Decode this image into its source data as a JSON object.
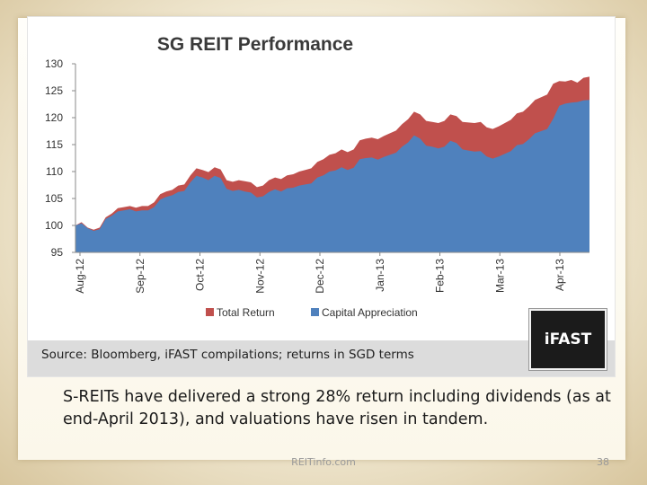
{
  "chart_data": {
    "type": "area",
    "title": "SG REIT Performance",
    "xlabel": "",
    "ylabel": "",
    "ylim": [
      95,
      130
    ],
    "yticks": [
      95,
      100,
      105,
      110,
      115,
      120,
      125,
      130
    ],
    "x_tick_labels": [
      "Aug-12",
      "Sep-12",
      "Oct-12",
      "Nov-12",
      "Dec-12",
      "Jan-13",
      "Feb-13",
      "Mar-13",
      "Apr-13"
    ],
    "legend_position": "bottom",
    "grid": false,
    "series": [
      {
        "name": "Total Return",
        "color": "#c0504d",
        "values": [
          100,
          100.6,
          99.6,
          99.2,
          99.6,
          101.5,
          102.2,
          103.2,
          103.4,
          103.6,
          103.3,
          103.6,
          103.6,
          104.3,
          105.8,
          106.3,
          106.6,
          107.4,
          107.6,
          109.3,
          110.6,
          110.3,
          109.9,
          110.8,
          110.4,
          108.4,
          108.1,
          108.4,
          108.2,
          108.0,
          107.1,
          107.4,
          108.4,
          108.9,
          108.6,
          109.3,
          109.5,
          110.0,
          110.3,
          110.6,
          111.8,
          112.3,
          113.1,
          113.4,
          114.1,
          113.6,
          114.1,
          115.8,
          116.1,
          116.3,
          116.0,
          116.6,
          117.1,
          117.6,
          118.8,
          119.7,
          121.1,
          120.6,
          119.4,
          119.2,
          119.0,
          119.4,
          120.6,
          120.3,
          119.2,
          119.1,
          119.0,
          119.2,
          118.2,
          117.9,
          118.4,
          119.0,
          119.6,
          120.8,
          121.1,
          122.1,
          123.3,
          123.8,
          124.3,
          126.3,
          126.8,
          126.7,
          127.0,
          126.5,
          127.4,
          127.6
        ]
      },
      {
        "name": "Capital Appreciation",
        "color": "#4f81bd",
        "values": [
          100,
          100.4,
          99.5,
          99,
          99.3,
          101.2,
          101.8,
          102.6,
          102.8,
          103,
          102.6,
          102.8,
          102.8,
          103.4,
          104.8,
          105.3,
          105.6,
          106.2,
          106.4,
          108,
          109.2,
          108.9,
          108.4,
          109.2,
          108.8,
          106.8,
          106.4,
          106.6,
          106.3,
          106.1,
          105.2,
          105.4,
          106.2,
          106.7,
          106.3,
          106.9,
          107,
          107.4,
          107.6,
          107.8,
          108.9,
          109.3,
          110,
          110.2,
          110.8,
          110.3,
          110.7,
          112.3,
          112.5,
          112.6,
          112.2,
          112.7,
          113.1,
          113.5,
          114.6,
          115.4,
          116.7,
          116.1,
          114.8,
          114.6,
          114.3,
          114.6,
          115.7,
          115.3,
          114.1,
          113.9,
          113.7,
          113.8,
          112.8,
          112.4,
          112.8,
          113.3,
          113.8,
          114.9,
          115.1,
          116,
          117.1,
          117.5,
          117.9,
          119.8,
          122.2,
          122.6,
          122.8,
          122.9,
          123.2,
          123.3
        ]
      }
    ]
  },
  "source_text": "Source: Bloomberg, iFAST compilations; returns in SGD terms",
  "logo_text": "iFAST",
  "caption": "S-REITs have delivered a strong 28% return including dividends (as at end-April 2013), and valuations have risen in tandem.",
  "footer": {
    "site": "REITinfo.com",
    "page_number": "38"
  }
}
